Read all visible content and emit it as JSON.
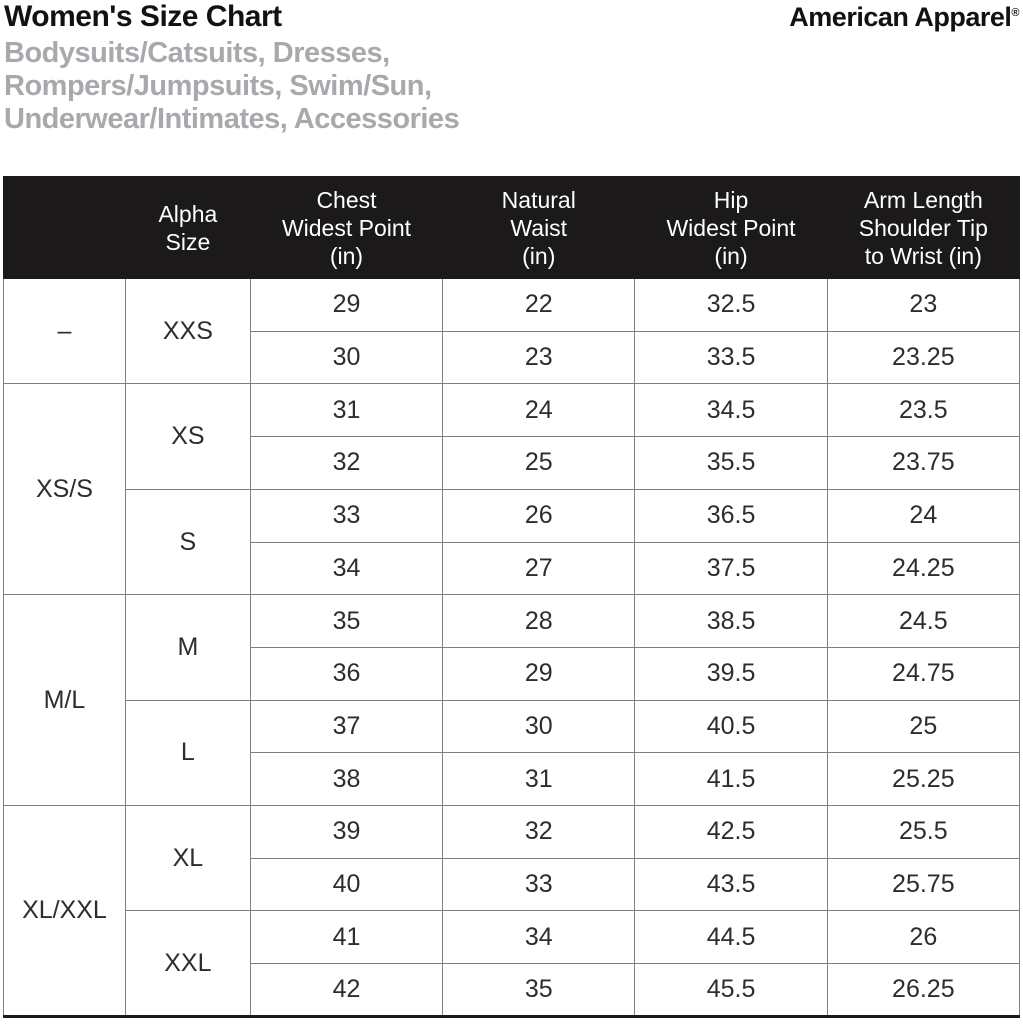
{
  "page": {
    "title": "Women's Size Chart",
    "subtitle_lines": [
      "Bodysuits/Catsuits, Dresses,",
      "Rompers/Jumpsuits, Swim/Sun,",
      "Underwear/Intimates, Accessories"
    ],
    "brand": "American Apparel",
    "brand_registered_mark": "®"
  },
  "colors": {
    "header_bg": "#1b191a",
    "header_text": "#ffffff",
    "subtitle_text": "#a7a9ac",
    "grid_line": "#7f7f7f"
  },
  "size_table": {
    "column_headers": [
      "",
      "Alpha\nSize",
      "Chest\nWidest Point\n(in)",
      "Natural\nWaist\n(in)",
      "Hip\nWidest Point\n(in)",
      "Arm Length\nShoulder Tip\nto Wrist (in)"
    ],
    "combo_sizes": [
      "–",
      "XS/S",
      "M/L",
      "XL/XXL"
    ],
    "alpha_sizes": [
      "XXS",
      "XS",
      "S",
      "M",
      "L",
      "XL",
      "XXL"
    ],
    "rows": [
      [
        "29",
        "22",
        "32.5",
        "23"
      ],
      [
        "30",
        "23",
        "33.5",
        "23.25"
      ],
      [
        "31",
        "24",
        "34.5",
        "23.5"
      ],
      [
        "32",
        "25",
        "35.5",
        "23.75"
      ],
      [
        "33",
        "26",
        "36.5",
        "24"
      ],
      [
        "34",
        "27",
        "37.5",
        "24.25"
      ],
      [
        "35",
        "28",
        "38.5",
        "24.5"
      ],
      [
        "36",
        "29",
        "39.5",
        "24.75"
      ],
      [
        "37",
        "30",
        "40.5",
        "25"
      ],
      [
        "38",
        "31",
        "41.5",
        "25.25"
      ],
      [
        "39",
        "32",
        "42.5",
        "25.5"
      ],
      [
        "40",
        "33",
        "43.5",
        "25.75"
      ],
      [
        "41",
        "34",
        "44.5",
        "26"
      ],
      [
        "42",
        "35",
        "45.5",
        "26.25"
      ]
    ]
  }
}
